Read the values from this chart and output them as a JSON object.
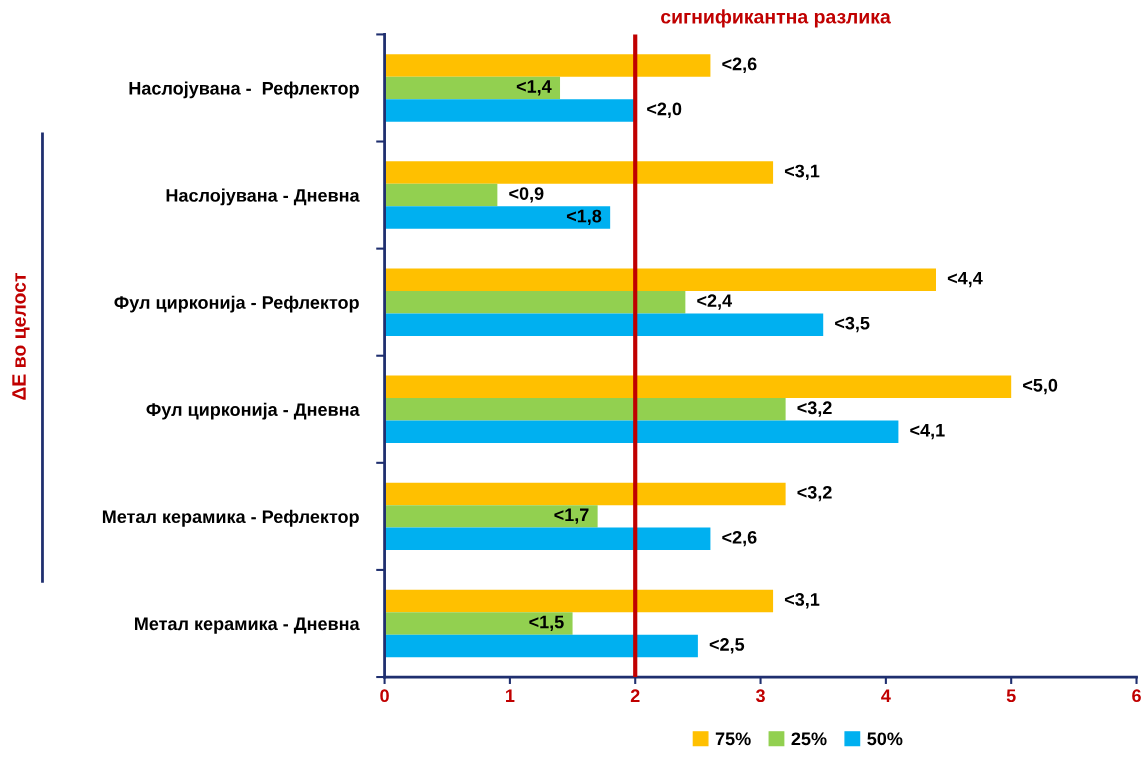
{
  "chart_data": {
    "type": "bar",
    "orientation": "horizontal",
    "ylabel": "ΔE во целост",
    "categories": [
      "Наслојувана -  Рефлектор",
      "Наслојувана - Дневна",
      "Фул циркониja - Рефлектор",
      "Фул циркониja - Дневна",
      "Метал керамика - Рефлектор",
      "Метал керамика - Дневна"
    ],
    "series": [
      {
        "name": "75%",
        "color": "#ffc000",
        "values": [
          2.6,
          3.1,
          4.4,
          5.0,
          3.2,
          3.1
        ],
        "value_labels": [
          "<2,6",
          "<3,1",
          "<4,4",
          "<5,0",
          "<3,2",
          "<3,1"
        ]
      },
      {
        "name": "25%",
        "color": "#92d050",
        "values": [
          1.4,
          0.9,
          2.4,
          3.2,
          1.7,
          1.5
        ],
        "value_labels": [
          "<1,4",
          "<0,9",
          "<2,4",
          "<3,2",
          "<1,7",
          "<1,5"
        ]
      },
      {
        "name": "50%",
        "color": "#00b0f0",
        "values": [
          2.0,
          1.8,
          3.5,
          4.1,
          2.6,
          2.5
        ],
        "value_labels": [
          "<2,0",
          "<1,8",
          "<3,5",
          "<4,1",
          "<2,6",
          "<2,5"
        ]
      }
    ],
    "xlim": [
      0,
      6
    ],
    "xticks": [
      0,
      1,
      2,
      3,
      4,
      5,
      6
    ],
    "ref_lines": [
      {
        "axis": "x",
        "value": 2,
        "label": "сигнификантна разлика",
        "color": "#c00000"
      }
    ],
    "grid": false,
    "legend": "bottom"
  }
}
